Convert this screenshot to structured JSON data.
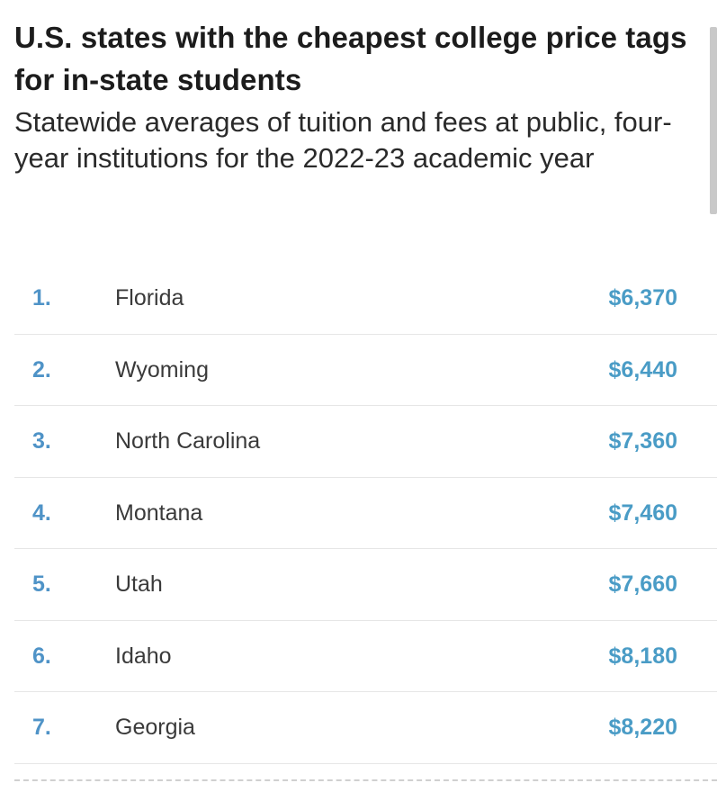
{
  "header": {
    "title": "U.S. states with the cheapest college price tags for in-state students",
    "subtitle": "Statewide averages of tuition and fees at public, four-year institutions for the 2022-23 academic year"
  },
  "colors": {
    "rank": "#4f93c7",
    "value": "#4a9cc6",
    "divider": "#e6e6e6"
  },
  "rows": [
    {
      "rank": "1.",
      "state": "Florida",
      "value": "$6,370"
    },
    {
      "rank": "2.",
      "state": "Wyoming",
      "value": "$6,440"
    },
    {
      "rank": "3.",
      "state": "North Carolina",
      "value": "$7,360"
    },
    {
      "rank": "4.",
      "state": "Montana",
      "value": "$7,460"
    },
    {
      "rank": "5.",
      "state": "Utah",
      "value": "$7,660"
    },
    {
      "rank": "6.",
      "state": "Idaho",
      "value": "$8,180"
    },
    {
      "rank": "7.",
      "state": "Georgia",
      "value": "$8,220"
    }
  ]
}
